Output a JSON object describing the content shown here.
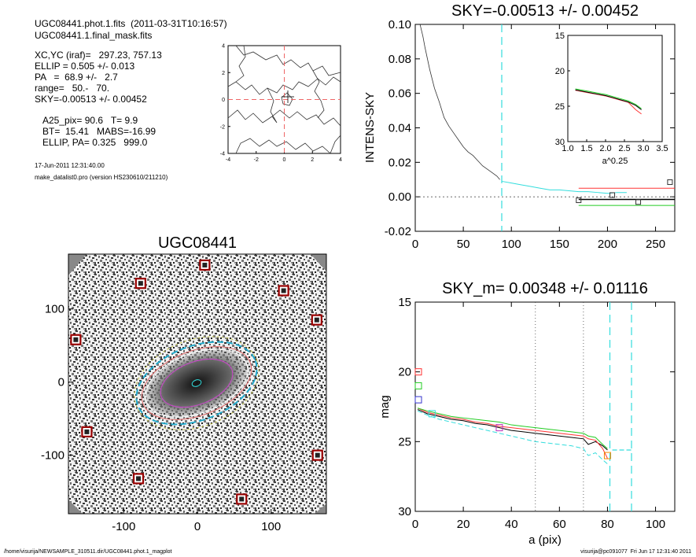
{
  "info": {
    "file": "UGC08441.phot.1.fits  (2011-03-31T10:16:57)",
    "mask": "UGC08441.1.final_mask.fits",
    "xcyc": "XC,YC (iraf)=   297.23, 757.13",
    "ellip": "ELLIP = 0.505 +/- 0.013",
    "pa": "PA   =  68.9 +/-   2.7",
    "range": "range=   50.-   70.",
    "sky": "SKY=-0.00513 +/- 0.00452",
    "a25": "A25_pix= 90.6   T= 9.9",
    "bt": "BT=  15.41   MABS=-16.99",
    "ellip_pa": "ELLIP, PA= 0.325   999.0",
    "date": "17-Jun-2011 12:31:40.00",
    "program": "make_datalist0.pro (version HS230610/211210)"
  },
  "footer": {
    "path": "/home/visurija/NEWSAMPLE_310511.dir/UGC08441.phot.1_magplot",
    "user": "visurija@pc091077  Fri Jun 17 12:31:40 2011"
  },
  "colors": {
    "cyan": "#33dddd",
    "red": "#ff3333",
    "green": "#22cc22",
    "blue": "#3333cc",
    "magenta": "#bb33bb",
    "orange": "#ee8800",
    "gray": "#444444"
  },
  "chart_data": [
    {
      "type": "line",
      "name": "center_contour",
      "xlim": [
        -4,
        4
      ],
      "ylim": [
        -4,
        4
      ],
      "xticks": [
        "-4",
        "-2",
        "0",
        "2",
        "4"
      ],
      "yticks": [
        "-4",
        "-2",
        "0",
        "2",
        "4"
      ]
    },
    {
      "type": "line",
      "title": "SKY=-0.00513 +/- 0.00452",
      "xlabel": "",
      "ylabel": "INTENS-SKY",
      "xlim": [
        0,
        270
      ],
      "ylim": [
        -0.02,
        0.1
      ],
      "xticks": [
        "0",
        "50",
        "100",
        "150",
        "200",
        "250"
      ],
      "yticks": [
        "-0.02",
        "0.00",
        "0.02",
        "0.04",
        "0.06",
        "0.08",
        "0.10"
      ],
      "vline": 90,
      "series": [
        {
          "x": [
            5,
            8,
            10,
            15,
            20,
            25,
            30,
            35,
            40,
            45,
            50,
            55,
            60,
            65,
            70,
            75,
            80,
            85,
            88
          ],
          "y": [
            0.1,
            0.093,
            0.087,
            0.074,
            0.063,
            0.055,
            0.046,
            0.041,
            0.037,
            0.033,
            0.029,
            0.026,
            0.024,
            0.021,
            0.018,
            0.016,
            0.014,
            0.012,
            0.01
          ]
        },
        {
          "x": [
            90,
            100,
            110,
            120,
            130,
            140,
            150,
            160,
            170,
            180,
            190,
            200,
            210,
            220
          ],
          "y": [
            0.009,
            0.008,
            0.007,
            0.006,
            0.005,
            0.004,
            0.004,
            0.0035,
            0.003,
            0.003,
            0.0025,
            0.002,
            0.0025,
            0.0025
          ]
        }
      ],
      "levels": [
        {
          "y": 0.005,
          "color": "red"
        },
        {
          "y": -0.0015,
          "color": "black"
        },
        {
          "y": -0.005,
          "color": "green"
        }
      ],
      "markers": {
        "x": [
          170,
          205,
          232,
          265
        ],
        "y": [
          -0.002,
          0.001,
          -0.003,
          0.0085
        ]
      },
      "inset": {
        "xlabel": "a^0.25",
        "xlim": [
          1.0,
          3.5
        ],
        "ylim": [
          15,
          30
        ],
        "xticks": [
          "1.0",
          "1.5",
          "2.0",
          "2.5",
          "3.0",
          "3.5"
        ],
        "yticks": [
          "15",
          "20",
          "25",
          "30"
        ],
        "x": [
          1.2,
          1.5,
          1.8,
          2.0,
          2.2,
          2.4,
          2.6,
          2.8,
          2.95
        ],
        "y": [
          22.7,
          23.0,
          23.3,
          23.5,
          23.8,
          24.1,
          24.4,
          24.9,
          25.5
        ]
      }
    },
    {
      "type": "image",
      "title": "UGC08441",
      "xlim": [
        -175,
        175
      ],
      "ylim": [
        -180,
        175
      ],
      "xticks": [
        "-100",
        "0",
        "100"
      ],
      "yticks": [
        "100",
        "0",
        "-100"
      ],
      "stars": {
        "x": [
          -77,
          10,
          117,
          -165,
          -150,
          -80,
          60,
          162,
          163
        ],
        "y": [
          135,
          160,
          125,
          58,
          -68,
          -132,
          -160,
          85,
          -100
        ]
      }
    },
    {
      "type": "line",
      "title": "SKY_m=  0.00348 +/- 0.01116",
      "xlabel": "a (pix)",
      "ylabel": "mag",
      "xlim": [
        0,
        108
      ],
      "ylim": [
        30,
        15
      ],
      "xticks": [
        "0",
        "20",
        "40",
        "60",
        "80",
        "100"
      ],
      "yticks": [
        "15",
        "20",
        "25",
        "30"
      ],
      "dotted_vlines": [
        50,
        70
      ],
      "dashed_vlines": [
        81,
        90
      ],
      "series": [
        {
          "name": "black",
          "x": [
            1,
            5,
            10,
            15,
            20,
            25,
            30,
            35,
            40,
            45,
            50,
            55,
            60,
            65,
            70,
            72,
            75,
            78,
            80
          ],
          "y": [
            22.7,
            23.0,
            23.2,
            23.4,
            23.5,
            23.7,
            23.8,
            24.0,
            24.2,
            24.3,
            24.4,
            24.5,
            24.6,
            24.7,
            24.8,
            25.2,
            25.0,
            25.3,
            25.6
          ]
        },
        {
          "name": "red",
          "x": [
            1,
            5,
            10,
            15,
            20,
            25,
            30,
            35,
            40,
            45,
            50,
            55,
            60,
            65,
            70,
            72,
            75,
            78,
            80
          ],
          "y": [
            22.6,
            22.9,
            23.1,
            23.3,
            23.4,
            23.6,
            23.7,
            23.9,
            24.0,
            24.1,
            24.2,
            24.3,
            24.4,
            24.5,
            24.6,
            24.8,
            24.9,
            25.5,
            26.2
          ]
        },
        {
          "name": "green",
          "x": [
            1,
            5,
            10,
            15,
            20,
            25,
            30,
            35,
            40,
            45,
            50,
            55,
            60,
            65,
            70,
            72,
            75,
            78,
            80
          ],
          "y": [
            22.6,
            22.8,
            23.0,
            23.2,
            23.3,
            23.4,
            23.5,
            23.6,
            23.8,
            23.9,
            24.0,
            24.1,
            24.2,
            24.3,
            24.4,
            24.6,
            24.7,
            25.2,
            25.5
          ]
        },
        {
          "name": "cyan",
          "x": [
            1,
            5,
            10,
            15,
            20,
            25,
            30,
            35,
            40,
            45,
            50,
            55,
            60,
            65,
            70,
            72,
            75,
            78,
            80
          ],
          "y": [
            22.8,
            23.1,
            23.4,
            23.6,
            23.8,
            24.0,
            24.2,
            24.4,
            24.6,
            24.8,
            25.0,
            25.1,
            25.2,
            25.3,
            25.5,
            26.0,
            25.8,
            26.3,
            26.6
          ]
        }
      ],
      "color_markers": [
        {
          "x": 0,
          "y": 20,
          "color": "red"
        },
        {
          "x": 0,
          "y": 21,
          "color": "green"
        },
        {
          "x": 0,
          "y": 22,
          "color": "blue"
        },
        {
          "x": 35,
          "y": 24,
          "color": "magenta"
        },
        {
          "x": 7,
          "y": 23,
          "color": "cyan"
        },
        {
          "x": 80,
          "y": 26,
          "color": "orange"
        }
      ],
      "hline": {
        "y": 25.6,
        "x0": 82,
        "x1": 90
      }
    }
  ]
}
